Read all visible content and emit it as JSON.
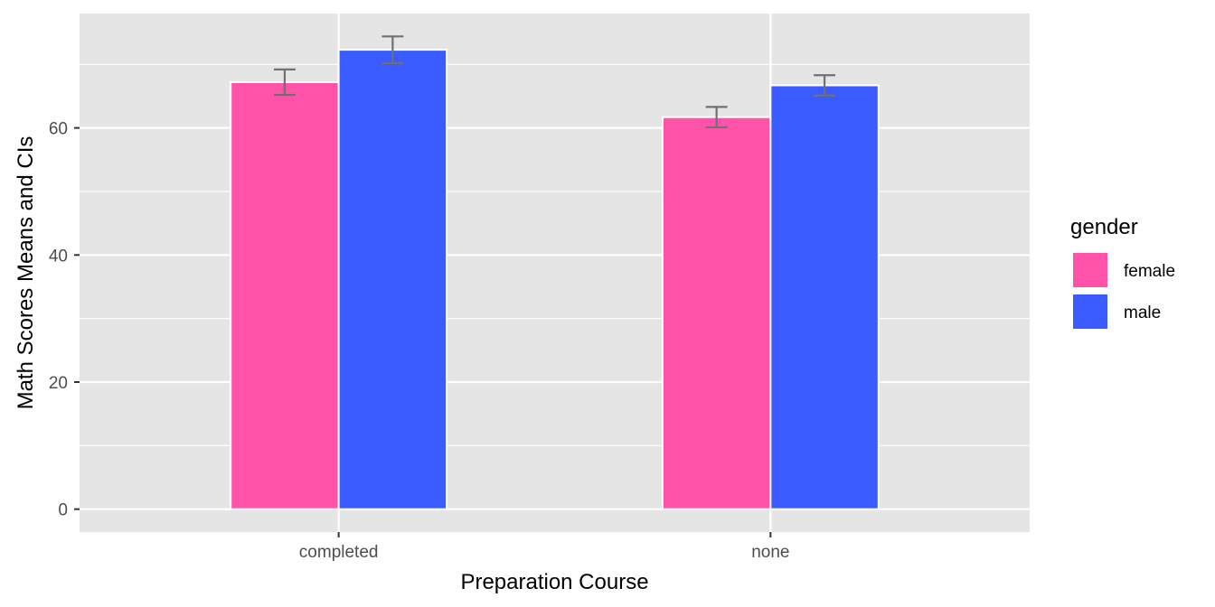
{
  "chart_data": {
    "type": "bar",
    "title": "",
    "xlabel": "Preparation Course",
    "ylabel": "Math Scores Means and CIs",
    "categories": [
      "completed",
      "none"
    ],
    "ylim": [
      -3.6,
      78
    ],
    "yticks": [
      0,
      20,
      40,
      60
    ],
    "grid": true,
    "legend": {
      "title": "gender",
      "placement": "right"
    },
    "series": [
      {
        "name": "female",
        "color": "#FF52A8",
        "values": [
          67.2,
          61.7
        ],
        "ci_low": [
          65.2,
          60.1
        ],
        "ci_high": [
          69.2,
          63.3
        ]
      },
      {
        "name": "male",
        "color": "#3A5BFF",
        "values": [
          72.3,
          66.7
        ],
        "ci_low": [
          70.2,
          65.1
        ],
        "ci_high": [
          74.4,
          68.3
        ]
      }
    ],
    "panel_background": "#E5E5E5",
    "grid_color": "#FFFFFF",
    "errorbar_color": "#707070"
  }
}
